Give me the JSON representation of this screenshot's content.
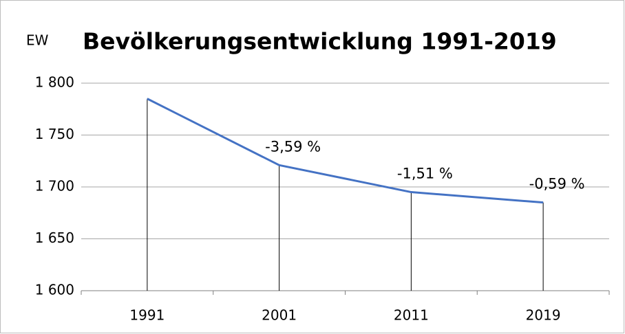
{
  "chart_data": {
    "type": "line",
    "title": "Bevölkerungsentwicklung 1991-2019",
    "y_label": "EW",
    "categories": [
      "1991",
      "2001",
      "2011",
      "2019"
    ],
    "series": [
      {
        "name": "EW",
        "color": "#4472c4",
        "values": [
          1785,
          1721,
          1695,
          1685
        ]
      }
    ],
    "annotations": [
      null,
      "-3,59 %",
      "-1,51 %",
      "-0,59 %"
    ],
    "drop_lines": true,
    "ylim": [
      1600,
      1800
    ],
    "yticks": [
      {
        "value": 1600,
        "label": "1 600"
      },
      {
        "value": 1650,
        "label": "1 650"
      },
      {
        "value": 1700,
        "label": "1 700"
      },
      {
        "value": 1750,
        "label": "1 750"
      },
      {
        "value": 1800,
        "label": "1 800"
      }
    ],
    "grid": true
  }
}
